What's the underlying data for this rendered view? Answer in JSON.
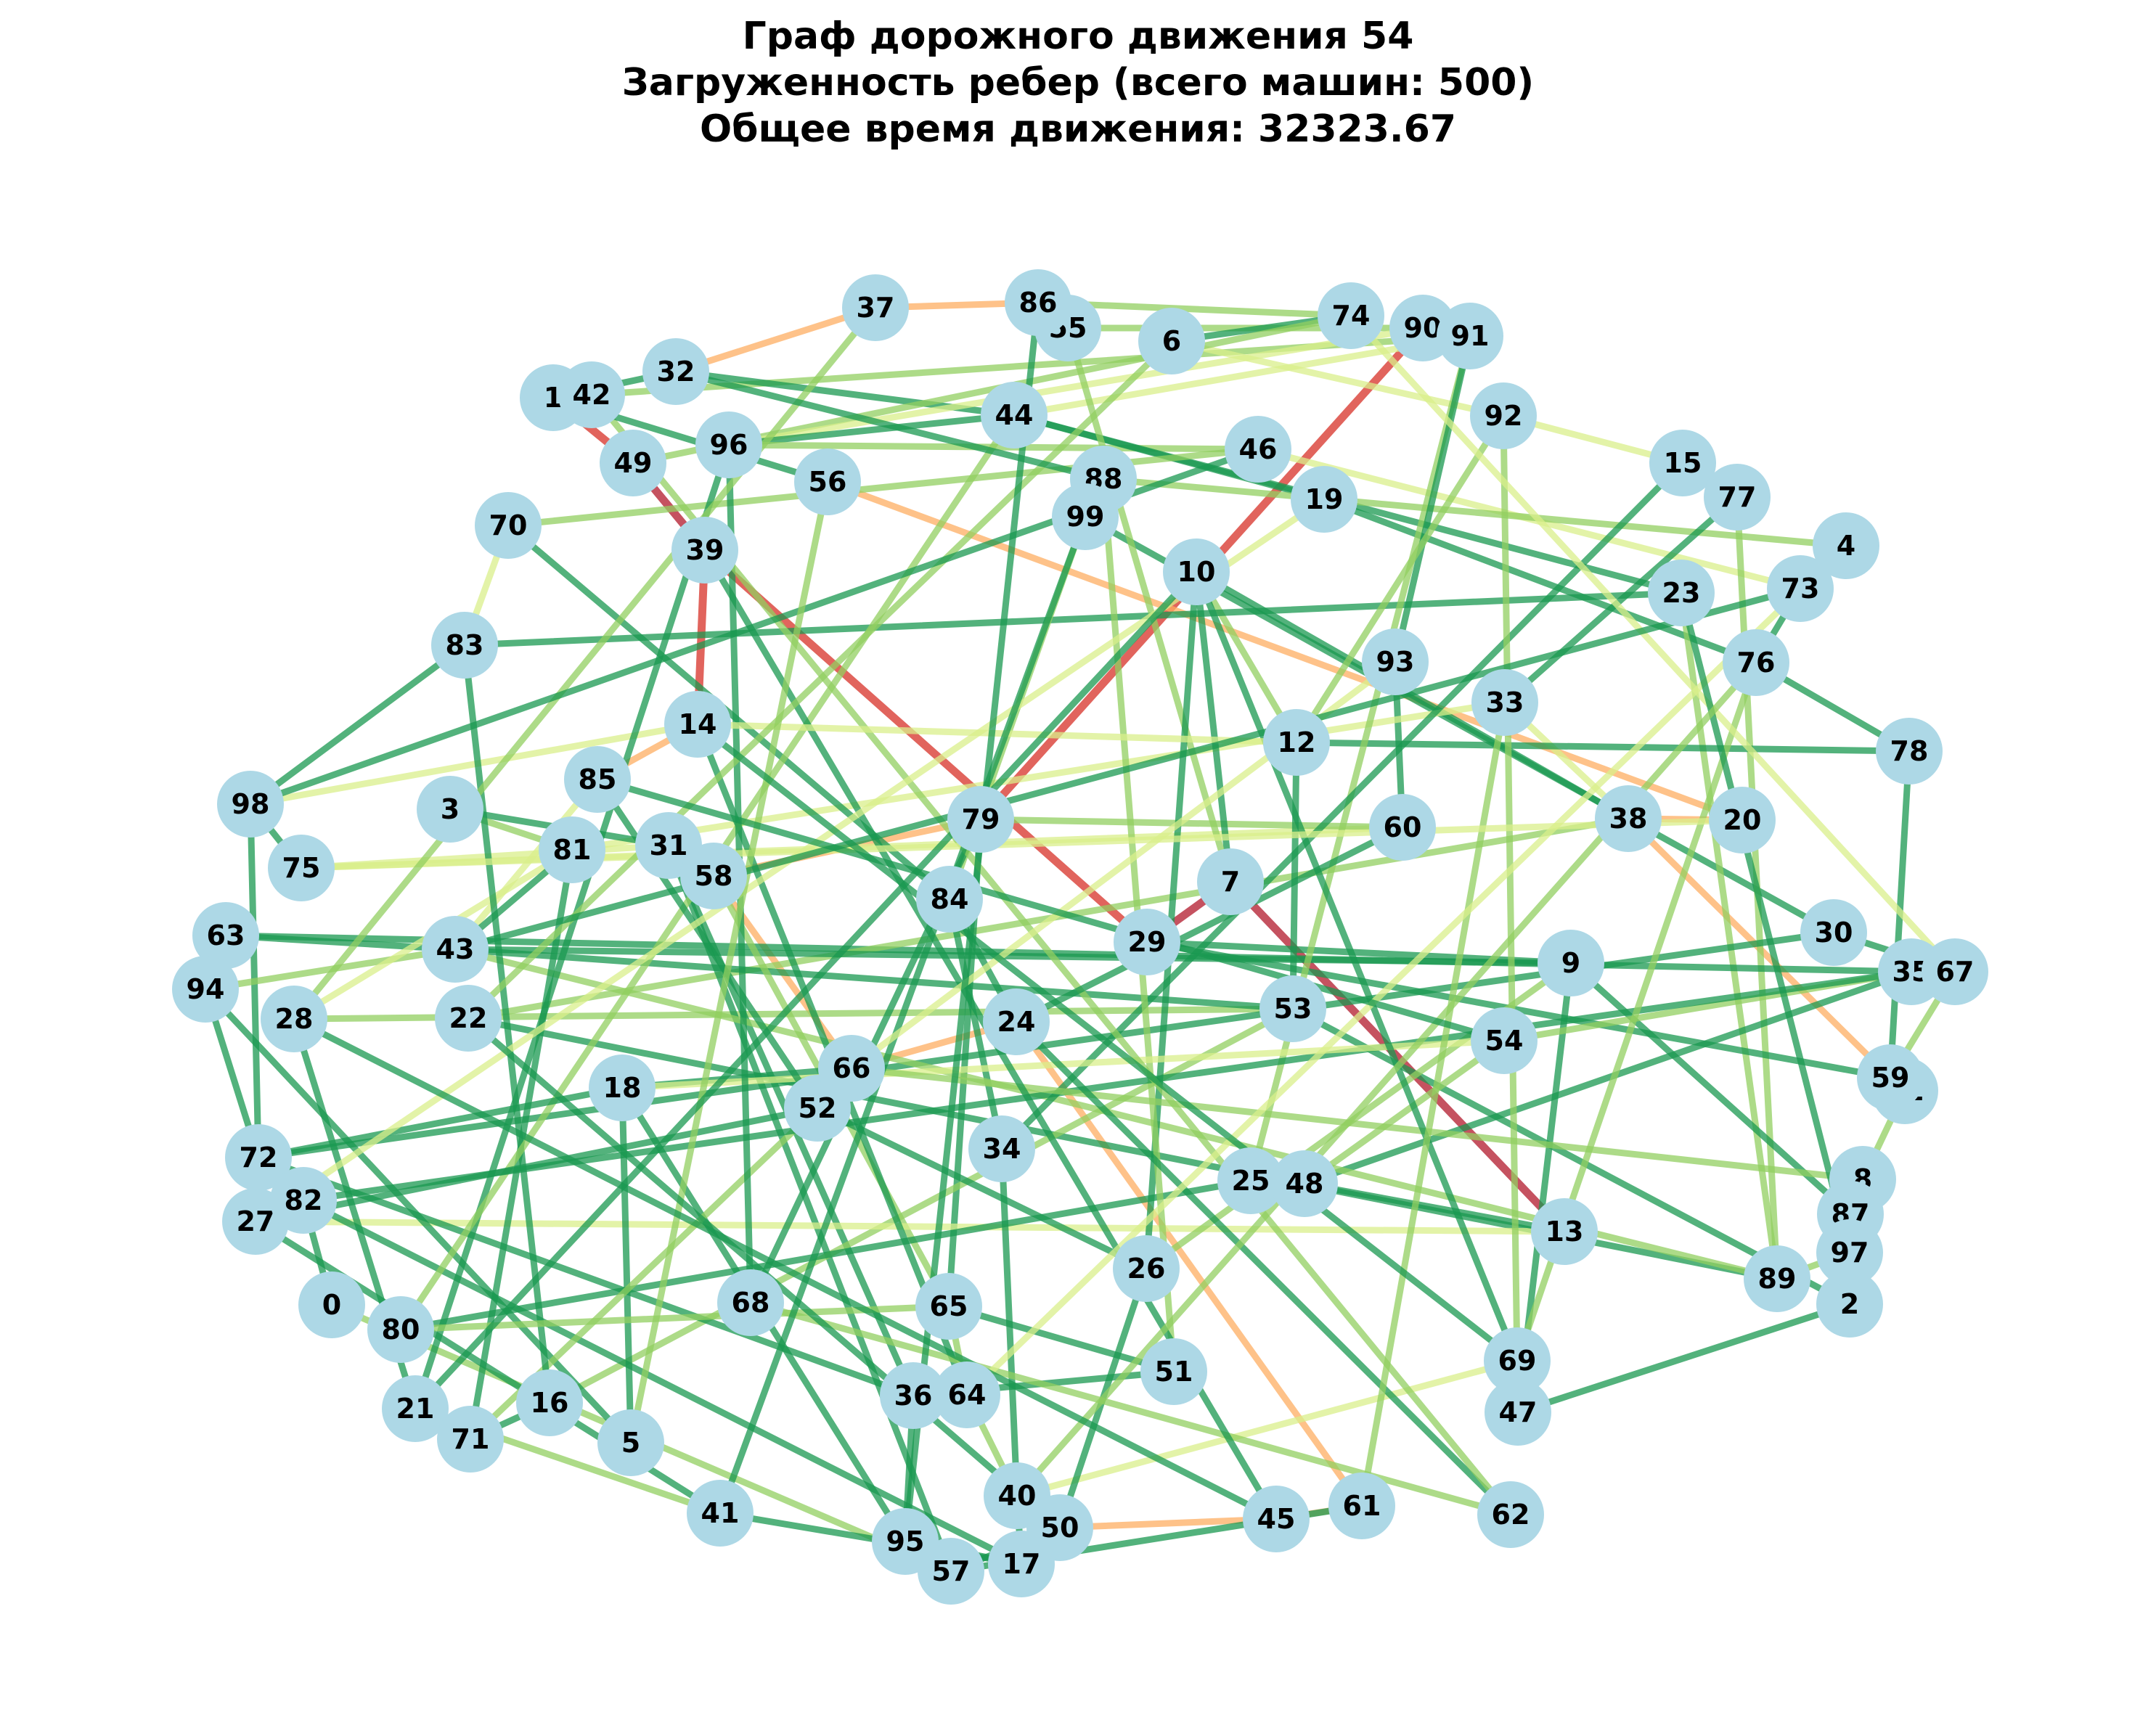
{
  "title": {
    "line1": "Граф дорожного движения 54",
    "line2": "Загруженность ребер (всего машин: 500)",
    "line3": "Общее время движения: 32323.67"
  },
  "colors": {
    "node_fill": "#add8e6",
    "low": "#1a9850",
    "mid_low": "#91cf60",
    "mid": "#d9ef8b",
    "pale": "#ffffbf",
    "mid_high": "#fdae61",
    "high": "#d73027",
    "very_high": "#b2182b"
  },
  "nodes": [
    "0",
    "1",
    "2",
    "3",
    "4",
    "5",
    "6",
    "7",
    "8",
    "9",
    "10",
    "11",
    "12",
    "13",
    "14",
    "15",
    "16",
    "17",
    "18",
    "19",
    "20",
    "21",
    "22",
    "23",
    "24",
    "25",
    "26",
    "27",
    "28",
    "29",
    "30",
    "31",
    "32",
    "33",
    "34",
    "35",
    "36",
    "37",
    "38",
    "39",
    "40",
    "41",
    "42",
    "43",
    "44",
    "45",
    "46",
    "47",
    "48",
    "49",
    "50",
    "51",
    "52",
    "53",
    "54",
    "55",
    "56",
    "57",
    "58",
    "59",
    "60",
    "61",
    "62",
    "63",
    "64",
    "65",
    "66",
    "67",
    "68",
    "69",
    "70",
    "71",
    "72",
    "73",
    "74",
    "75",
    "76",
    "77",
    "78",
    "79",
    "80",
    "81",
    "82",
    "83",
    "84",
    "85",
    "86",
    "87",
    "88",
    "89",
    "90",
    "91",
    "92",
    "93",
    "94",
    "95",
    "96",
    "97",
    "98",
    "99"
  ],
  "edges": [
    [
      "1",
      "49",
      "high"
    ],
    [
      "49",
      "39",
      "very_high"
    ],
    [
      "39",
      "14",
      "high"
    ],
    [
      "14",
      "85",
      "mid_high"
    ],
    [
      "90",
      "79",
      "high"
    ],
    [
      "79",
      "58",
      "mid_high"
    ],
    [
      "32",
      "37",
      "mid_high"
    ],
    [
      "37",
      "86",
      "mid_high"
    ],
    [
      "50",
      "45",
      "mid_high"
    ],
    [
      "45",
      "61",
      "mid_high"
    ],
    [
      "7",
      "13",
      "very_high"
    ],
    [
      "29",
      "7",
      "very_high"
    ],
    [
      "39",
      "29",
      "high"
    ],
    [
      "56",
      "20",
      "mid_high"
    ],
    [
      "38",
      "20",
      "mid_high"
    ],
    [
      "38",
      "59",
      "mid_high"
    ],
    [
      "61",
      "24",
      "mid_high"
    ],
    [
      "24",
      "66",
      "mid_high"
    ],
    [
      "58",
      "66",
      "mid_high"
    ],
    [
      "1",
      "32",
      "low"
    ],
    [
      "42",
      "91",
      "mid_low"
    ],
    [
      "32",
      "44",
      "low"
    ],
    [
      "44",
      "91",
      "mid"
    ],
    [
      "6",
      "92",
      "mid"
    ],
    [
      "86",
      "74",
      "mid_low"
    ],
    [
      "55",
      "90",
      "mid_low"
    ],
    [
      "74",
      "6",
      "low"
    ],
    [
      "49",
      "74",
      "mid_low"
    ],
    [
      "96",
      "90",
      "mid"
    ],
    [
      "96",
      "44",
      "low"
    ],
    [
      "96",
      "46",
      "mid_low"
    ],
    [
      "44",
      "19",
      "low"
    ],
    [
      "44",
      "23",
      "low"
    ],
    [
      "46",
      "73",
      "mid"
    ],
    [
      "88",
      "4",
      "mid_low"
    ],
    [
      "99",
      "30",
      "low"
    ],
    [
      "10",
      "38",
      "low"
    ],
    [
      "10",
      "12",
      "mid_low"
    ],
    [
      "19",
      "76",
      "low"
    ],
    [
      "92",
      "15",
      "mid"
    ],
    [
      "15",
      "77",
      "low"
    ],
    [
      "77",
      "89",
      "mid_low"
    ],
    [
      "4",
      "73",
      "low"
    ],
    [
      "73",
      "76",
      "low"
    ],
    [
      "76",
      "78",
      "low"
    ],
    [
      "78",
      "59",
      "low"
    ],
    [
      "23",
      "89",
      "mid_low"
    ],
    [
      "93",
      "60",
      "low"
    ],
    [
      "33",
      "38",
      "mid"
    ],
    [
      "33",
      "81",
      "mid"
    ],
    [
      "12",
      "78",
      "low"
    ],
    [
      "70",
      "46",
      "mid_low"
    ],
    [
      "70",
      "83",
      "mid"
    ],
    [
      "83",
      "98",
      "low"
    ],
    [
      "83",
      "23",
      "low"
    ],
    [
      "98",
      "75",
      "low"
    ],
    [
      "98",
      "72",
      "low"
    ],
    [
      "98",
      "14",
      "mid"
    ],
    [
      "63",
      "43",
      "low"
    ],
    [
      "63",
      "35",
      "low"
    ],
    [
      "94",
      "63",
      "low"
    ],
    [
      "94",
      "72",
      "low"
    ],
    [
      "94",
      "43",
      "mid_low"
    ],
    [
      "28",
      "81",
      "mid"
    ],
    [
      "28",
      "53",
      "mid_low"
    ],
    [
      "22",
      "38",
      "mid_low"
    ],
    [
      "22",
      "89",
      "low"
    ],
    [
      "43",
      "53",
      "low"
    ],
    [
      "43",
      "9",
      "low"
    ],
    [
      "43",
      "85",
      "mid"
    ],
    [
      "3",
      "31",
      "low"
    ],
    [
      "3",
      "81",
      "mid_low"
    ],
    [
      "75",
      "31",
      "mid"
    ],
    [
      "75",
      "60",
      "mid"
    ],
    [
      "81",
      "43",
      "low"
    ],
    [
      "31",
      "36",
      "low"
    ],
    [
      "31",
      "57",
      "low"
    ],
    [
      "58",
      "65",
      "mid_low"
    ],
    [
      "84",
      "34",
      "low"
    ],
    [
      "84",
      "99",
      "mid_low"
    ],
    [
      "84",
      "70",
      "low"
    ],
    [
      "79",
      "60",
      "mid_low"
    ],
    [
      "79",
      "65",
      "low"
    ],
    [
      "29",
      "9",
      "low"
    ],
    [
      "29",
      "59",
      "low"
    ],
    [
      "7",
      "10",
      "low"
    ],
    [
      "7",
      "55",
      "mid_low"
    ],
    [
      "53",
      "12",
      "low"
    ],
    [
      "53",
      "2",
      "low"
    ],
    [
      "53",
      "16",
      "mid_low"
    ],
    [
      "9",
      "47",
      "low"
    ],
    [
      "9",
      "87",
      "low"
    ],
    [
      "54",
      "48",
      "mid_low"
    ],
    [
      "54",
      "35",
      "mid_low"
    ],
    [
      "30",
      "67",
      "low"
    ],
    [
      "30",
      "72",
      "low"
    ],
    [
      "35",
      "48",
      "low"
    ],
    [
      "67",
      "59",
      "mid_low"
    ],
    [
      "59",
      "11",
      "low"
    ],
    [
      "11",
      "8",
      "mid_low"
    ],
    [
      "8",
      "87",
      "low"
    ],
    [
      "87",
      "97",
      "low"
    ],
    [
      "97",
      "89",
      "mid_low"
    ],
    [
      "2",
      "47",
      "low"
    ],
    [
      "89",
      "43",
      "mid_low"
    ],
    [
      "13",
      "27",
      "mid"
    ],
    [
      "13",
      "48",
      "low"
    ],
    [
      "48",
      "25",
      "mid_low"
    ],
    [
      "25",
      "91",
      "mid_low"
    ],
    [
      "25",
      "80",
      "low"
    ],
    [
      "26",
      "52",
      "low"
    ],
    [
      "26",
      "10",
      "low"
    ],
    [
      "26",
      "9",
      "mid_low"
    ],
    [
      "34",
      "40",
      "low"
    ],
    [
      "34",
      "15",
      "low"
    ],
    [
      "65",
      "51",
      "low"
    ],
    [
      "65",
      "64",
      "mid_low"
    ],
    [
      "51",
      "36",
      "low"
    ],
    [
      "51",
      "88",
      "mid_low"
    ],
    [
      "64",
      "40",
      "mid_low"
    ],
    [
      "64",
      "14",
      "low"
    ],
    [
      "36",
      "95",
      "low"
    ],
    [
      "36",
      "72",
      "low"
    ],
    [
      "40",
      "17",
      "low"
    ],
    [
      "40",
      "69",
      "mid"
    ],
    [
      "50",
      "57",
      "low"
    ],
    [
      "50",
      "26",
      "low"
    ],
    [
      "17",
      "95",
      "low"
    ],
    [
      "17",
      "82",
      "low"
    ],
    [
      "57",
      "0",
      "mid_low"
    ],
    [
      "95",
      "18",
      "low"
    ],
    [
      "41",
      "27",
      "low"
    ],
    [
      "41",
      "17",
      "low"
    ],
    [
      "41",
      "21",
      "mid_low"
    ],
    [
      "5",
      "18",
      "low"
    ],
    [
      "5",
      "94",
      "low"
    ],
    [
      "71",
      "16",
      "low"
    ],
    [
      "71",
      "81",
      "low"
    ],
    [
      "71",
      "52",
      "mid_low"
    ],
    [
      "21",
      "28",
      "low"
    ],
    [
      "21",
      "96",
      "low"
    ],
    [
      "16",
      "83",
      "low"
    ],
    [
      "80",
      "44",
      "mid_low"
    ],
    [
      "80",
      "65",
      "mid_low"
    ],
    [
      "0",
      "82",
      "low"
    ],
    [
      "82",
      "35",
      "low"
    ],
    [
      "27",
      "52",
      "low"
    ],
    [
      "72",
      "18",
      "low"
    ],
    [
      "18",
      "66",
      "low"
    ],
    [
      "18",
      "54",
      "mid"
    ],
    [
      "52",
      "66",
      "low"
    ],
    [
      "52",
      "85",
      "low"
    ],
    [
      "66",
      "8",
      "mid_low"
    ],
    [
      "68",
      "96",
      "low"
    ],
    [
      "68",
      "79",
      "low"
    ],
    [
      "68",
      "62",
      "mid_low"
    ],
    [
      "24",
      "84",
      "low"
    ],
    [
      "24",
      "62",
      "low"
    ],
    [
      "62",
      "42",
      "mid_low"
    ],
    [
      "69",
      "10",
      "low"
    ],
    [
      "69",
      "76",
      "mid_low"
    ],
    [
      "47",
      "92",
      "mid_low"
    ],
    [
      "45",
      "39",
      "low"
    ],
    [
      "61",
      "33",
      "mid_low"
    ],
    [
      "61",
      "57",
      "low"
    ],
    [
      "12",
      "14",
      "mid"
    ],
    [
      "60",
      "24",
      "low"
    ],
    [
      "20",
      "75",
      "mid"
    ],
    [
      "77",
      "33",
      "low"
    ],
    [
      "37",
      "28",
      "mid_low"
    ],
    [
      "6",
      "22",
      "mid_low"
    ],
    [
      "19",
      "27",
      "mid"
    ],
    [
      "46",
      "98",
      "low"
    ],
    [
      "99",
      "41",
      "low"
    ],
    [
      "88",
      "32",
      "low"
    ],
    [
      "56",
      "5",
      "mid_low"
    ],
    [
      "56",
      "1",
      "low"
    ],
    [
      "10",
      "21",
      "low"
    ],
    [
      "93",
      "66",
      "mid"
    ],
    [
      "86",
      "95",
      "low"
    ],
    [
      "91",
      "93",
      "low"
    ],
    [
      "92",
      "12",
      "mid_low"
    ],
    [
      "74",
      "67",
      "mid"
    ],
    [
      "4",
      "64",
      "mid"
    ],
    [
      "23",
      "97",
      "low"
    ],
    [
      "76",
      "40",
      "mid_low"
    ],
    [
      "73",
      "43",
      "low"
    ],
    [
      "85",
      "54",
      "low"
    ],
    [
      "14",
      "69",
      "low"
    ],
    [
      "22",
      "50",
      "low"
    ],
    [
      "28",
      "45",
      "low"
    ]
  ]
}
